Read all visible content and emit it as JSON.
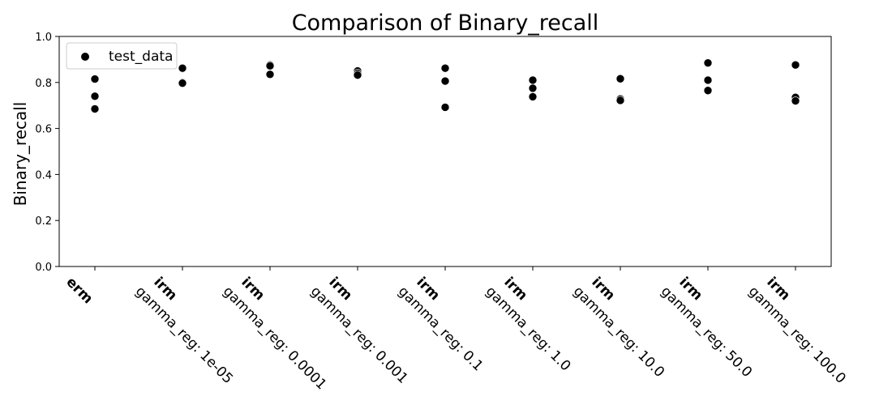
{
  "chart_data": {
    "type": "scatter",
    "title": "Comparison of Binary_recall",
    "xlabel": "",
    "ylabel": "Binary_recall",
    "ylim": [
      0.0,
      1.0
    ],
    "yticks": [
      "0.0",
      "0.2",
      "0.4",
      "0.6",
      "0.8",
      "1.0"
    ],
    "legend": {
      "position": "top-left",
      "entries": [
        "test_data"
      ]
    },
    "grid": false,
    "categories": [
      {
        "name": "erm",
        "sub": ""
      },
      {
        "name": "irm",
        "sub": "gamma_reg: 1e-05"
      },
      {
        "name": "irm",
        "sub": "gamma_reg: 0.0001"
      },
      {
        "name": "irm",
        "sub": "gamma_reg: 0.001"
      },
      {
        "name": "irm",
        "sub": "gamma_reg: 0.1"
      },
      {
        "name": "irm",
        "sub": "gamma_reg: 1.0"
      },
      {
        "name": "irm",
        "sub": "gamma_reg: 10.0"
      },
      {
        "name": "irm",
        "sub": "gamma_reg: 50.0"
      },
      {
        "name": "irm",
        "sub": "gamma_reg: 100.0"
      }
    ],
    "series": [
      {
        "name": "test_data",
        "color": "#000000",
        "values": [
          [
            0.815,
            0.74,
            0.685
          ],
          [
            0.862,
            0.8,
            0.797
          ],
          [
            0.876,
            0.872,
            0.835
          ],
          [
            0.85,
            0.84,
            0.832
          ],
          [
            0.862,
            0.806,
            0.692
          ],
          [
            0.81,
            0.775,
            0.738
          ],
          [
            0.816,
            0.728,
            0.722
          ],
          [
            0.885,
            0.81,
            0.765
          ],
          [
            0.876,
            0.735,
            0.72
          ]
        ]
      }
    ]
  }
}
